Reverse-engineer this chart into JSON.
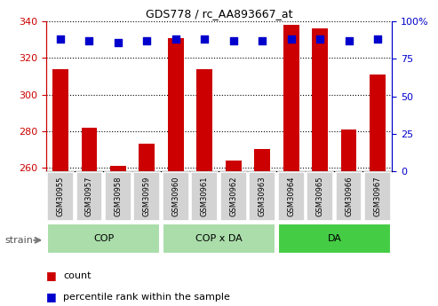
{
  "title": "GDS778 / rc_AA893667_at",
  "samples": [
    "GSM30955",
    "GSM30957",
    "GSM30958",
    "GSM30959",
    "GSM30960",
    "GSM30961",
    "GSM30962",
    "GSM30963",
    "GSM30964",
    "GSM30965",
    "GSM30966",
    "GSM30967"
  ],
  "counts": [
    314,
    282,
    261,
    273,
    331,
    314,
    264,
    270,
    338,
    336,
    281,
    311
  ],
  "percentile": [
    88,
    87,
    86,
    87,
    88,
    88,
    87,
    87,
    88,
    88,
    87,
    88
  ],
  "group_labels": [
    "COP",
    "COP x DA",
    "DA"
  ],
  "group_starts": [
    0,
    4,
    8
  ],
  "group_ends": [
    4,
    8,
    12
  ],
  "group_colors": [
    "#AADDAA",
    "#AADDAA",
    "#44CC44"
  ],
  "ylim_left": [
    258,
    340
  ],
  "ylim_right": [
    0,
    100
  ],
  "yticks_left": [
    260,
    280,
    300,
    320,
    340
  ],
  "yticks_right": [
    0,
    25,
    50,
    75,
    100
  ],
  "ytick_labels_right": [
    "0",
    "25",
    "50",
    "75",
    "100%"
  ],
  "bar_color": "#CC0000",
  "dot_color": "#0000CC",
  "bar_width": 0.55,
  "dot_size": 30,
  "bg_color": "#FFFFFF",
  "left_axis_color": "#CC0000",
  "right_axis_color": "#0000CC",
  "sample_box_color": "#D3D3D3",
  "strain_label": "strain",
  "legend_count": "count",
  "legend_percentile": "percentile rank within the sample"
}
